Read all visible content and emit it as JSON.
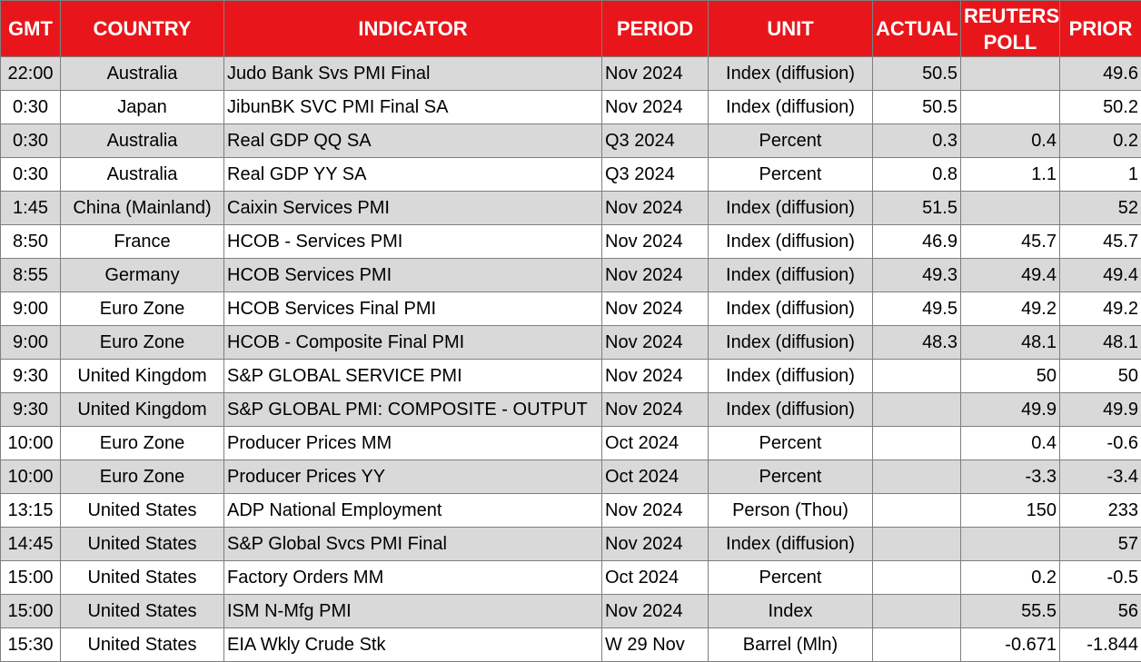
{
  "headers": {
    "gmt": "GMT",
    "country": "COUNTRY",
    "indicator": "INDICATOR",
    "period": "PERIOD",
    "unit": "UNIT",
    "actual": "ACTUAL",
    "poll": "REUTERS POLL",
    "prior": "PRIOR"
  },
  "colors": {
    "header_background": "#e8161b",
    "header_text": "#ffffff",
    "shaded_row": "#d9d9d9"
  },
  "rows": [
    {
      "gmt": "22:00",
      "country": "Australia",
      "indicator": "Judo Bank Svs PMI Final",
      "period": "Nov 2024",
      "unit": "Index (diffusion)",
      "actual": "50.5",
      "poll": "",
      "prior": "49.6",
      "shaded": true
    },
    {
      "gmt": "0:30",
      "country": "Japan",
      "indicator": "JibunBK SVC PMI Final SA",
      "period": "Nov 2024",
      "unit": "Index (diffusion)",
      "actual": "50.5",
      "poll": "",
      "prior": "50.2",
      "shaded": false
    },
    {
      "gmt": "0:30",
      "country": "Australia",
      "indicator": "Real GDP QQ SA",
      "period": "Q3 2024",
      "unit": "Percent",
      "actual": "0.3",
      "poll": "0.4",
      "prior": "0.2",
      "shaded": true
    },
    {
      "gmt": "0:30",
      "country": "Australia",
      "indicator": "Real GDP YY SA",
      "period": "Q3 2024",
      "unit": "Percent",
      "actual": "0.8",
      "poll": "1.1",
      "prior": "1",
      "shaded": false
    },
    {
      "gmt": "1:45",
      "country": "China (Mainland)",
      "indicator": "Caixin Services PMI",
      "period": "Nov 2024",
      "unit": "Index (diffusion)",
      "actual": "51.5",
      "poll": "",
      "prior": "52",
      "shaded": true
    },
    {
      "gmt": "8:50",
      "country": "France",
      "indicator": "HCOB - Services PMI",
      "period": "Nov 2024",
      "unit": "Index (diffusion)",
      "actual": "46.9",
      "poll": "45.7",
      "prior": "45.7",
      "shaded": false
    },
    {
      "gmt": "8:55",
      "country": "Germany",
      "indicator": "HCOB Services PMI",
      "period": "Nov 2024",
      "unit": "Index (diffusion)",
      "actual": "49.3",
      "poll": "49.4",
      "prior": "49.4",
      "shaded": true
    },
    {
      "gmt": "9:00",
      "country": "Euro Zone",
      "indicator": "HCOB Services Final PMI",
      "period": "Nov 2024",
      "unit": "Index (diffusion)",
      "actual": "49.5",
      "poll": "49.2",
      "prior": "49.2",
      "shaded": false
    },
    {
      "gmt": "9:00",
      "country": "Euro Zone",
      "indicator": "HCOB - Composite Final PMI",
      "period": "Nov 2024",
      "unit": "Index (diffusion)",
      "actual": "48.3",
      "poll": "48.1",
      "prior": "48.1",
      "shaded": true
    },
    {
      "gmt": "9:30",
      "country": "United Kingdom",
      "indicator": "S&P GLOBAL SERVICE PMI",
      "period": "Nov 2024",
      "unit": "Index (diffusion)",
      "actual": "",
      "poll": "50",
      "prior": "50",
      "shaded": false
    },
    {
      "gmt": "9:30",
      "country": "United Kingdom",
      "indicator": "S&P GLOBAL PMI: COMPOSITE - OUTPUT",
      "period": "Nov 2024",
      "unit": "Index (diffusion)",
      "actual": "",
      "poll": "49.9",
      "prior": "49.9",
      "shaded": true
    },
    {
      "gmt": "10:00",
      "country": "Euro Zone",
      "indicator": "Producer Prices MM",
      "period": "Oct 2024",
      "unit": "Percent",
      "actual": "",
      "poll": "0.4",
      "prior": "-0.6",
      "shaded": false
    },
    {
      "gmt": "10:00",
      "country": "Euro Zone",
      "indicator": "Producer Prices YY",
      "period": "Oct 2024",
      "unit": "Percent",
      "actual": "",
      "poll": "-3.3",
      "prior": "-3.4",
      "shaded": true
    },
    {
      "gmt": "13:15",
      "country": "United States",
      "indicator": "ADP National Employment",
      "period": "Nov 2024",
      "unit": "Person (Thou)",
      "actual": "",
      "poll": "150",
      "prior": "233",
      "shaded": false
    },
    {
      "gmt": "14:45",
      "country": "United States",
      "indicator": "S&P Global Svcs PMI Final",
      "period": "Nov 2024",
      "unit": "Index (diffusion)",
      "actual": "",
      "poll": "",
      "prior": "57",
      "shaded": true
    },
    {
      "gmt": "15:00",
      "country": "United States",
      "indicator": "Factory Orders MM",
      "period": "Oct 2024",
      "unit": "Percent",
      "actual": "",
      "poll": "0.2",
      "prior": "-0.5",
      "shaded": false
    },
    {
      "gmt": "15:00",
      "country": "United States",
      "indicator": "ISM N-Mfg PMI",
      "period": "Nov 2024",
      "unit": "Index",
      "actual": "",
      "poll": "55.5",
      "prior": "56",
      "shaded": true
    },
    {
      "gmt": "15:30",
      "country": "United States",
      "indicator": "EIA Wkly Crude Stk",
      "period": "W 29 Nov",
      "unit": "Barrel (Mln)",
      "actual": "",
      "poll": "-0.671",
      "prior": "-1.844",
      "shaded": false
    }
  ]
}
